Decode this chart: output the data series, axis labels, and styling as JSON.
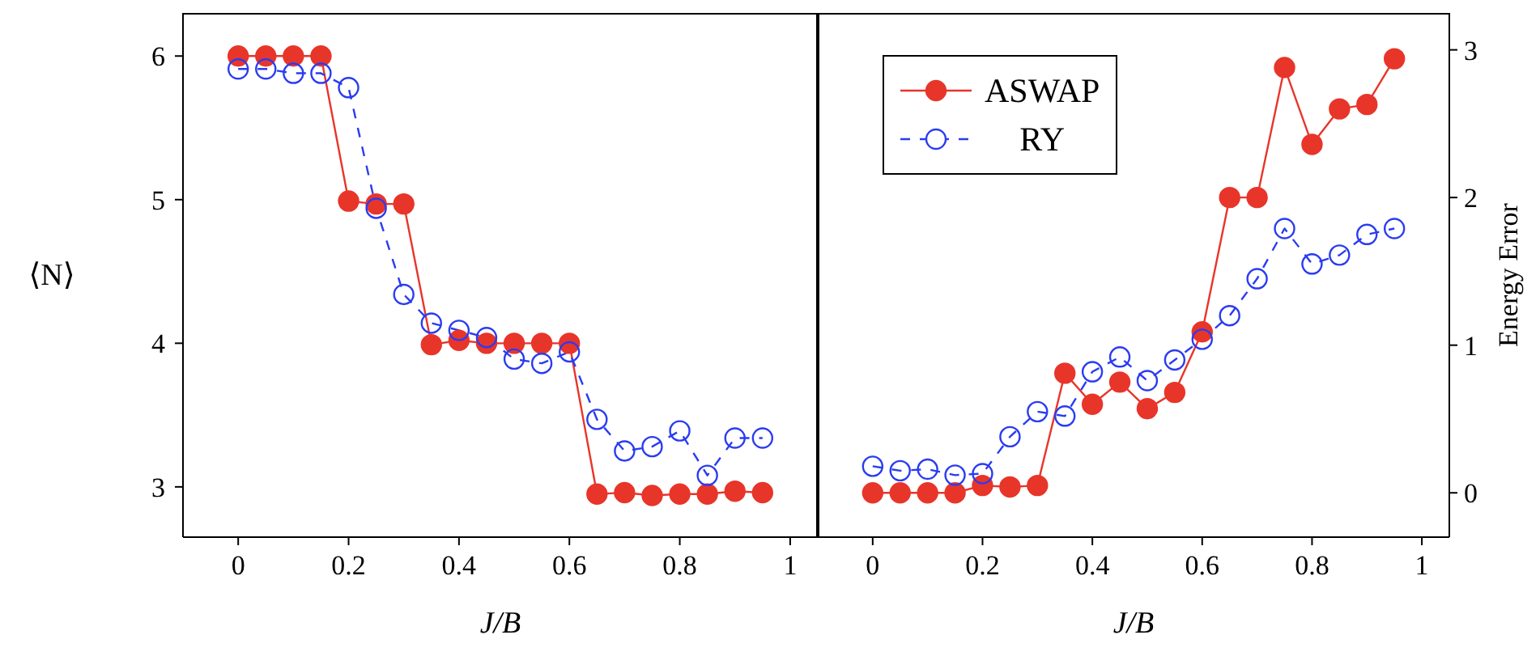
{
  "chart_data": [
    {
      "type": "line",
      "xlabel": "J/B",
      "ylabel": "⟨N⟩",
      "x": [
        0,
        0.05,
        0.1,
        0.15,
        0.2,
        0.25,
        0.3,
        0.35,
        0.4,
        0.45,
        0.5,
        0.55,
        0.6,
        0.65,
        0.7,
        0.75,
        0.8,
        0.85,
        0.9,
        0.95
      ],
      "series": [
        {
          "color": "#e8352a",
          "line_style": "solid",
          "values": [
            6,
            6,
            6,
            6,
            4.99,
            4.97,
            4.97,
            3.99,
            4.02,
            4.0,
            4.0,
            4.0,
            4.0,
            2.95,
            2.96,
            2.94,
            2.95,
            2.95,
            2.97,
            2.96
          ]
        },
        {
          "color": "#2a3cf0",
          "line_style": "dashed",
          "values": [
            5.91,
            5.91,
            5.88,
            5.88,
            5.78,
            4.94,
            4.34,
            4.14,
            4.09,
            4.04,
            3.89,
            3.86,
            3.94,
            3.47,
            3.25,
            3.28,
            3.39,
            3.08,
            3.34,
            3.34
          ]
        }
      ],
      "marker": "circle",
      "xlim": [
        -0.1,
        1.05
      ],
      "ylim": [
        2.65,
        6.3
      ],
      "xticks": [
        0,
        0.2,
        0.4,
        0.6,
        0.8,
        1
      ],
      "yticks": [
        3,
        4,
        5,
        6
      ]
    },
    {
      "type": "line",
      "xlabel": "J/B",
      "y2label": "Energy Error",
      "x": [
        0,
        0.05,
        0.1,
        0.15,
        0.2,
        0.25,
        0.3,
        0.35,
        0.4,
        0.45,
        0.5,
        0.55,
        0.6,
        0.65,
        0.7,
        0.75,
        0.8,
        0.85,
        0.9,
        0.95
      ],
      "series": [
        {
          "name": "ASWAP",
          "color": "#e8352a",
          "line_style": "solid",
          "axis": "y2",
          "values": [
            0,
            0,
            0,
            0,
            0.05,
            0.04,
            0.05,
            0.81,
            0.6,
            0.75,
            0.57,
            0.68,
            1.09,
            2.0,
            2.0,
            2.88,
            2.36,
            2.6,
            2.63,
            2.94
          ]
        },
        {
          "name": "RY",
          "color": "#2a3cf0",
          "line_style": "dashed",
          "axis": "y2",
          "values": [
            0.18,
            0.15,
            0.16,
            0.12,
            0.13,
            0.38,
            0.55,
            0.52,
            0.82,
            0.92,
            0.76,
            0.9,
            1.04,
            1.2,
            1.45,
            1.79,
            1.55,
            1.61,
            1.75,
            1.79
          ]
        }
      ],
      "marker": "circle",
      "legend": "top left",
      "xlim": [
        -0.1,
        1.05
      ],
      "y2lim": [
        -0.3,
        3.25
      ],
      "xticks": [
        0,
        0.2,
        0.4,
        0.6,
        0.8,
        1
      ],
      "y2ticks": [
        0,
        1,
        2,
        3
      ]
    }
  ]
}
